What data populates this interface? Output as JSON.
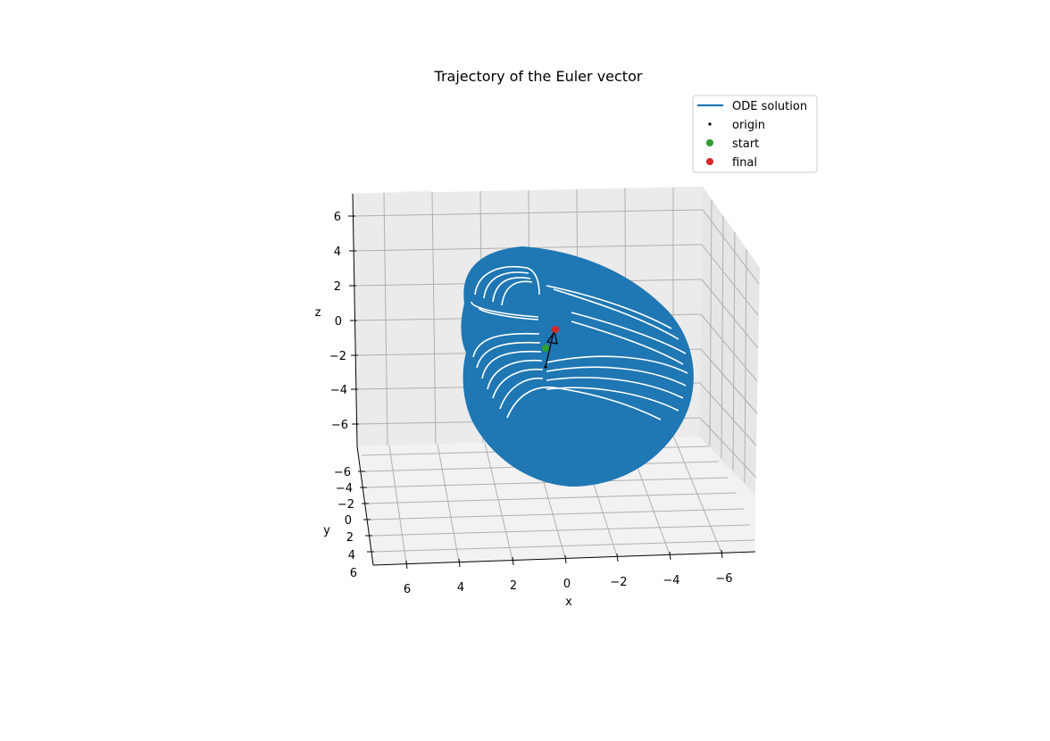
{
  "chart_data": {
    "type": "line3d",
    "title": "Trajectory of the Euler vector",
    "xlabel": "x",
    "ylabel": "y",
    "zlabel": "z",
    "xlim": [
      -7,
      7
    ],
    "ylim": [
      -7,
      7
    ],
    "zlim": [
      -7,
      7
    ],
    "x_ticks": [
      "6",
      "4",
      "2",
      "0",
      "−2",
      "−4",
      "−6"
    ],
    "y_ticks": [
      "−6",
      "−4",
      "−2",
      "0",
      "2",
      "4",
      "6"
    ],
    "z_ticks": [
      "6",
      "4",
      "2",
      "0",
      "−2",
      "−4",
      "−6"
    ],
    "grid": true,
    "legend_position": "top-right",
    "legend": [
      {
        "label": "ODE solution",
        "kind": "line",
        "color": "#1f77b4"
      },
      {
        "label": "origin",
        "kind": "point",
        "color": "#000000"
      },
      {
        "label": "start",
        "kind": "point",
        "color": "#2ca02c"
      },
      {
        "label": "final",
        "kind": "point",
        "color": "#d62728"
      }
    ],
    "series": [
      {
        "name": "ODE solution",
        "color": "#1f77b4",
        "description": "dense spiraling trajectory filling a region roughly x in [-6,4], z in [-7,4]"
      }
    ],
    "points": {
      "origin": [
        0,
        0,
        0
      ],
      "start": [
        0,
        0,
        1
      ],
      "final": [
        -0.6,
        0,
        2.2
      ]
    }
  }
}
